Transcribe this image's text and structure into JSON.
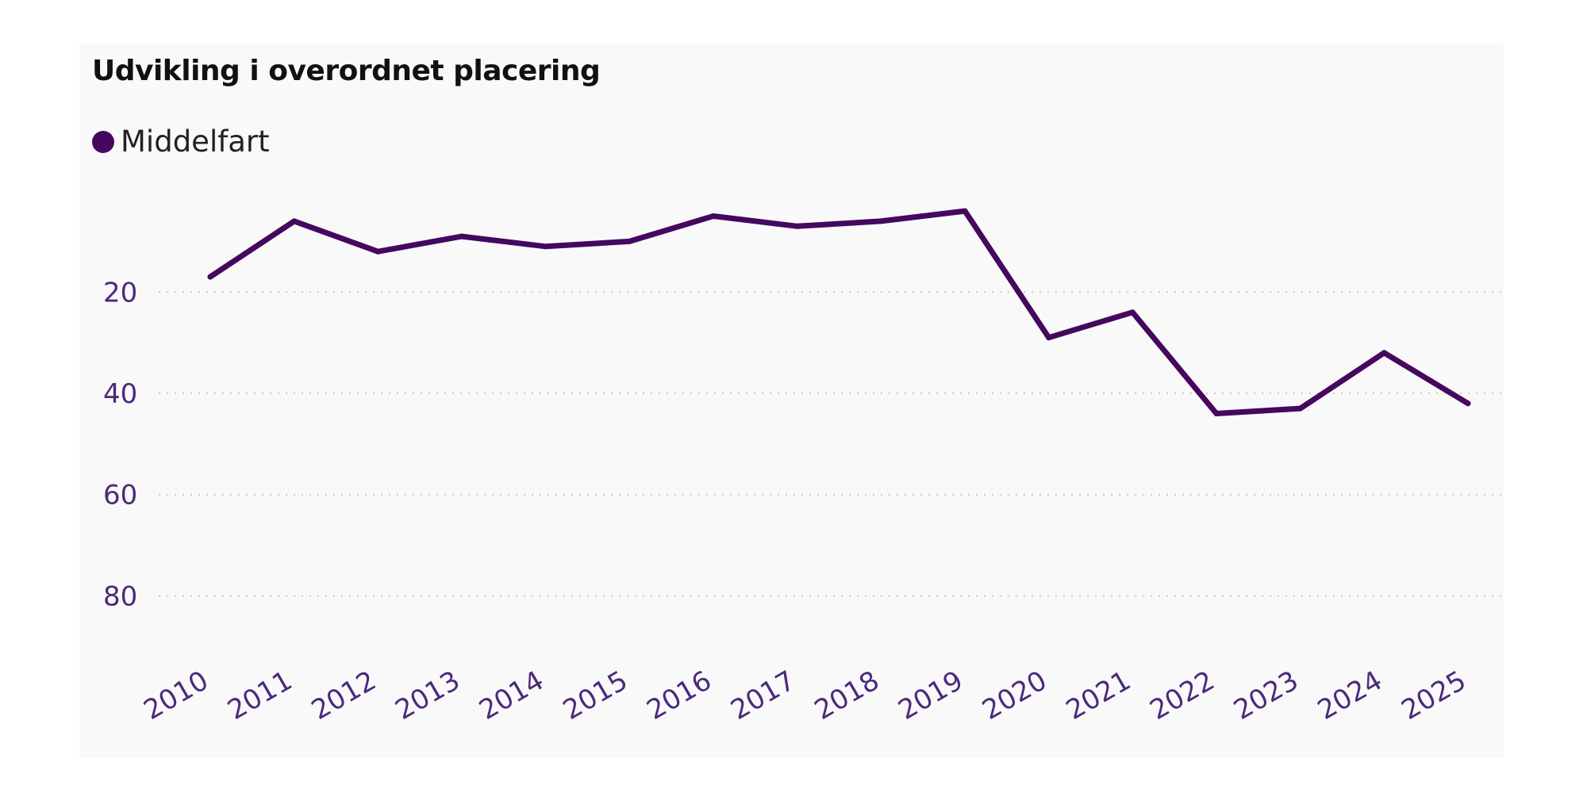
{
  "chart_data": {
    "type": "line",
    "title": "Udvikling i overordnet placering",
    "xlabel": "",
    "ylabel": "",
    "y_inverted": true,
    "ylim": [
      1,
      95
    ],
    "yticks": [
      20,
      40,
      60,
      80
    ],
    "grid": "horizontal-dotted",
    "legend": "top-left",
    "categories": [
      "2010",
      "2011",
      "2012",
      "2013",
      "2014",
      "2015",
      "2016",
      "2017",
      "2018",
      "2019",
      "2020",
      "2021",
      "2022",
      "2023",
      "2024",
      "2025"
    ],
    "series": [
      {
        "name": "Middelfart",
        "color": "#46075e",
        "values": [
          17,
          6,
          12,
          9,
          11,
          10,
          5,
          7,
          6,
          4,
          29,
          24,
          44,
          43,
          32,
          42
        ]
      }
    ]
  },
  "colors": {
    "panel_background": "#f9f9fa",
    "axis_text": "#4b2a7a",
    "gridline": "#c8c8c8"
  }
}
